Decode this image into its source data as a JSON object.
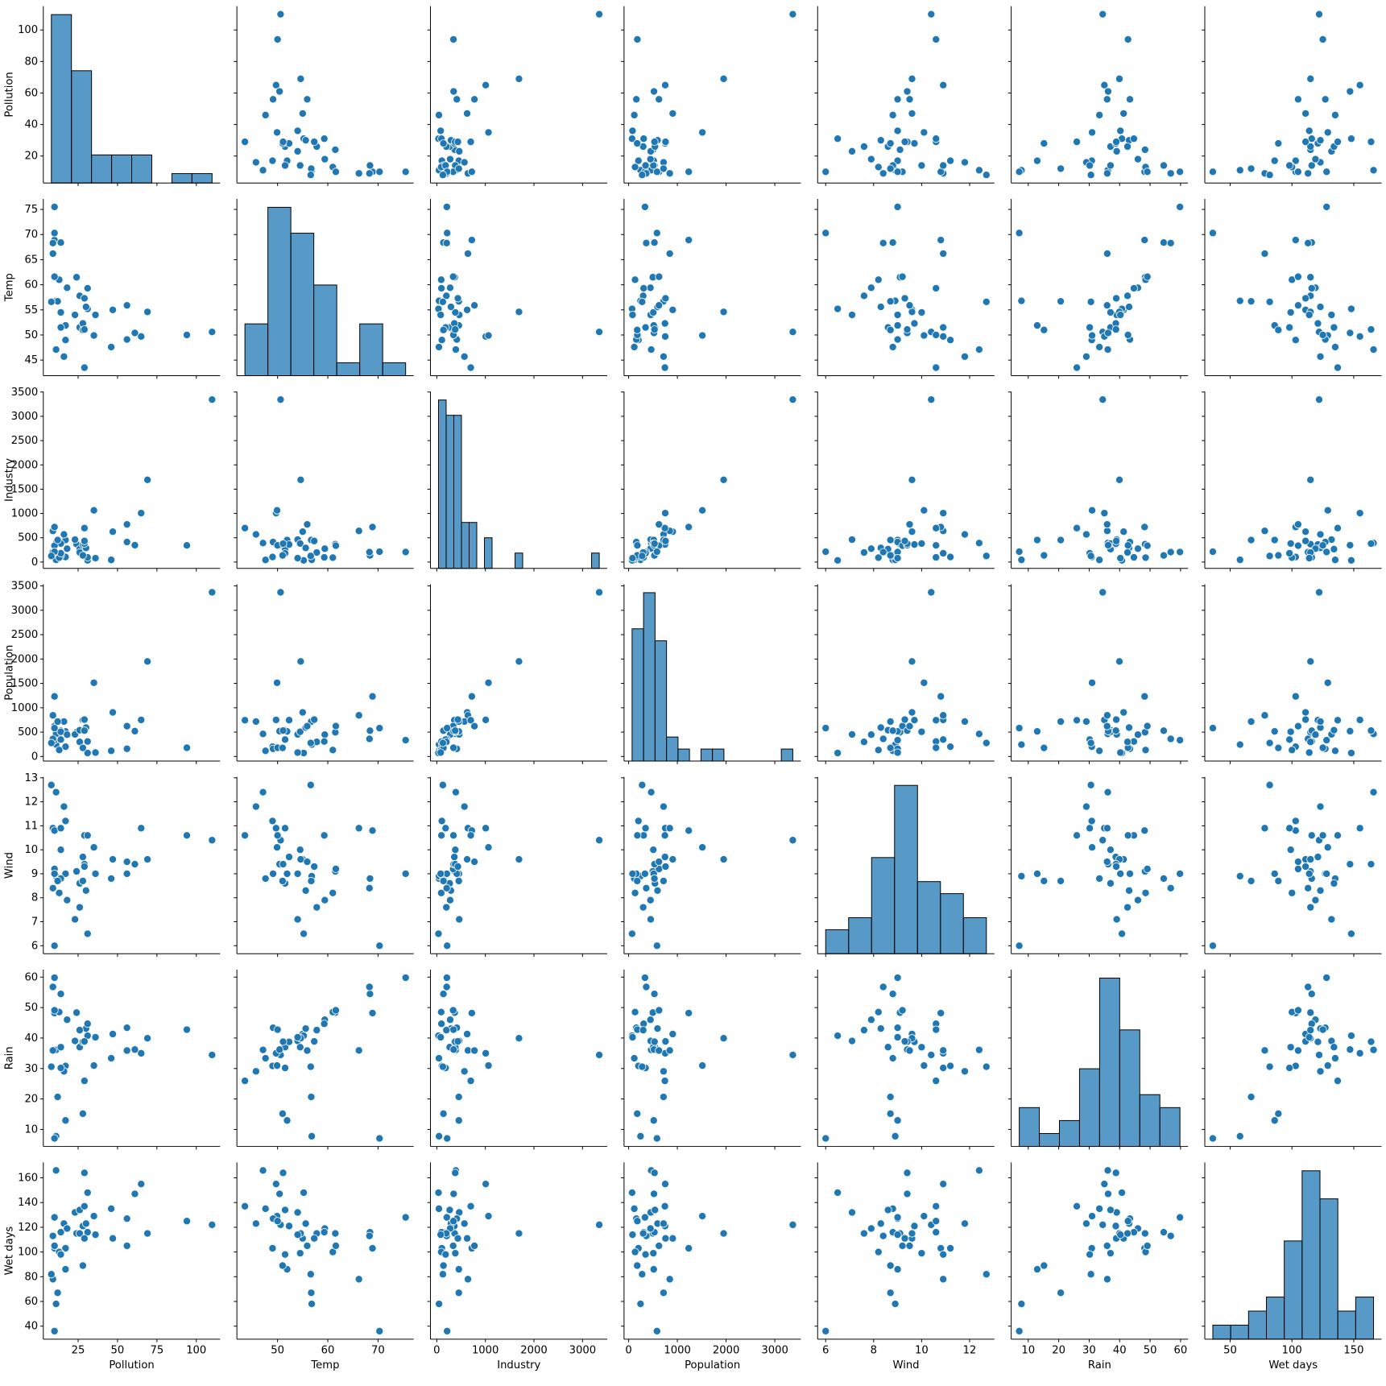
{
  "chart_data": {
    "type": "pairplot",
    "color": "#1f77b4",
    "variables": [
      {
        "name": "Pollution",
        "lim": [
          2.9,
          115.1
        ],
        "xticks": [
          25,
          50,
          75,
          100
        ],
        "yticks": [
          20,
          40,
          60,
          80,
          100
        ],
        "values": [
          46,
          11,
          24,
          47,
          11,
          31,
          110,
          23,
          65,
          26,
          9,
          17,
          17,
          35,
          56,
          10,
          28,
          14,
          14,
          13,
          30,
          10,
          10,
          16,
          29,
          18,
          9,
          31,
          14,
          69,
          10,
          61,
          94,
          26,
          28,
          12,
          29,
          56,
          29,
          8,
          36
        ],
        "hist": {
          "bins": [
            8,
            20.75,
            33.5,
            46.25,
            59,
            71.75,
            84.5,
            97.25,
            110
          ],
          "counts": [
            18,
            12,
            3,
            3,
            3,
            0,
            1,
            1
          ],
          "ylim": [
            0,
            18.9
          ]
        }
      },
      {
        "name": "Temp",
        "lim": [
          41.9,
          77.1
        ],
        "xticks": [
          50,
          60,
          70
        ],
        "yticks": [
          45,
          50,
          55,
          60,
          65,
          70,
          75
        ],
        "values": [
          47.6,
          56.8,
          61.5,
          55.0,
          47.1,
          55.2,
          50.6,
          54.0,
          49.7,
          51.5,
          66.2,
          51.9,
          49.0,
          49.9,
          49.1,
          68.9,
          52.3,
          68.4,
          54.5,
          61.0,
          55.6,
          61.6,
          75.5,
          45.7,
          43.5,
          59.4,
          68.3,
          59.3,
          51.5,
          54.6,
          70.3,
          50.4,
          50.0,
          57.8,
          51.0,
          56.7,
          51.1,
          55.9,
          57.3,
          56.6,
          54.0
        ],
        "hist": {
          "bins": [
            43.5,
            48.071,
            52.643,
            57.214,
            61.786,
            66.357,
            70.929,
            75.5
          ],
          "counts": [
            4,
            13,
            11,
            7,
            1,
            4,
            1
          ],
          "ylim": [
            0,
            13.65
          ]
        }
      },
      {
        "name": "Industry",
        "lim": [
          -130,
          3509
        ],
        "xticks": [
          0,
          1000,
          2000,
          3000
        ],
        "yticks": [
          0,
          500,
          1000,
          1500,
          2000,
          2500,
          3000,
          3500
        ],
        "values": [
          44,
          46,
          368,
          625,
          391,
          35,
          3344,
          462,
          1007,
          266,
          641,
          454,
          104,
          1064,
          412,
          721,
          361,
          136,
          381,
          91,
          291,
          337,
          207,
          569,
          699,
          275,
          204,
          96,
          181,
          1692,
          213,
          347,
          343,
          197,
          137,
          453,
          379,
          775,
          434,
          125,
          80
        ],
        "hist": {
          "bins": [
            35,
            192.571,
            350.143,
            507.714,
            665.286,
            822.857,
            980.429,
            1138,
            1295.571,
            1453.143,
            1610.714,
            1768.286,
            1925.857,
            2083.429,
            2241,
            2398.571,
            2556.143,
            2713.714,
            2871.286,
            3028.857,
            3186.429,
            3344
          ],
          "counts": [
            11,
            10,
            10,
            3,
            3,
            0,
            2,
            0,
            0,
            0,
            1,
            0,
            0,
            0,
            0,
            0,
            0,
            0,
            0,
            0,
            1
          ],
          "ylim": [
            0,
            11.55
          ]
        }
      },
      {
        "name": "Population",
        "lim": [
          -94,
          3534
        ],
        "xticks": [
          0,
          1000,
          2000,
          3000
        ],
        "yticks": [
          0,
          500,
          1000,
          1500,
          2000,
          2500,
          3000,
          3500
        ],
        "values": [
          116,
          244,
          497,
          905,
          463,
          71,
          3369,
          453,
          751,
          540,
          844,
          515,
          201,
          1513,
          158,
          1233,
          746,
          529,
          507,
          132,
          593,
          624,
          335,
          717,
          744,
          448,
          361,
          308,
          347,
          1950,
          582,
          520,
          179,
          299,
          176,
          716,
          531,
          622,
          757,
          277,
          80
        ],
        "hist": {
          "bins": [
            71,
            306.571,
            542.143,
            777.714,
            1013.286,
            1248.857,
            1484.429,
            1720,
            1955.571,
            2191.143,
            2426.714,
            2662.286,
            2897.857,
            3133.429,
            3369
          ],
          "counts": [
            11,
            14,
            10,
            2,
            1,
            0,
            1,
            1,
            0,
            0,
            0,
            0,
            0,
            1
          ],
          "ylim": [
            0,
            14.7
          ]
        }
      },
      {
        "name": "Wind",
        "lim": [
          5.665,
          13.035
        ],
        "xticks": [
          6,
          8,
          10,
          12
        ],
        "yticks": [
          6,
          7,
          8,
          9,
          10,
          11,
          12,
          13
        ],
        "values": [
          8.8,
          8.9,
          9.1,
          9.6,
          12.4,
          6.5,
          10.4,
          7.1,
          10.9,
          8.6,
          10.9,
          9.0,
          11.2,
          10.1,
          9.0,
          10.8,
          9.7,
          8.8,
          10.0,
          8.2,
          8.3,
          9.2,
          9.0,
          11.8,
          10.6,
          7.9,
          8.4,
          10.6,
          10.9,
          9.6,
          6.0,
          9.4,
          10.6,
          7.6,
          8.7,
          8.7,
          9.4,
          9.5,
          9.3,
          12.7,
          9.0
        ],
        "hist": {
          "bins": [
            6,
            6.957,
            7.914,
            8.871,
            9.829,
            10.786,
            11.743,
            12.7
          ],
          "counts": [
            2,
            3,
            8,
            14,
            6,
            5,
            3
          ],
          "ylim": [
            0,
            14.7
          ]
        }
      },
      {
        "name": "Rain",
        "lim": [
          4.41,
          62.44
        ],
        "xticks": [
          10,
          20,
          30,
          40,
          50,
          60
        ],
        "yticks": [
          10,
          20,
          30,
          40,
          50,
          60
        ],
        "values": [
          33.36,
          7.77,
          48.34,
          41.31,
          36.11,
          40.75,
          34.44,
          39.04,
          34.99,
          37.01,
          35.94,
          12.95,
          30.85,
          30.96,
          43.37,
          48.19,
          38.74,
          54.47,
          37.0,
          48.52,
          43.11,
          49.1,
          59.8,
          29.07,
          25.94,
          46.0,
          56.77,
          44.68,
          30.18,
          39.93,
          7.05,
          36.22,
          42.75,
          42.59,
          15.17,
          20.66,
          38.79,
          35.89,
          38.89,
          30.58,
          40.25
        ],
        "hist": {
          "bins": [
            7.05,
            13.644,
            20.238,
            26.831,
            33.425,
            40.019,
            46.613,
            53.206,
            59.8
          ],
          "counts": [
            3,
            1,
            2,
            6,
            13,
            9,
            4,
            3
          ],
          "ylim": [
            0,
            13.65
          ]
        }
      },
      {
        "name": "Wet days",
        "lim": [
          29.5,
          172.5
        ],
        "xticks": [
          50,
          100,
          150
        ],
        "yticks": [
          40,
          60,
          80,
          100,
          120,
          140,
          160
        ],
        "values": [
          135,
          58,
          115,
          111,
          166,
          148,
          122,
          132,
          155,
          134,
          78,
          86,
          103,
          129,
          127,
          103,
          121,
          116,
          99,
          100,
          123,
          105,
          128,
          123,
          137,
          119,
          113,
          116,
          98,
          115,
          36,
          147,
          125,
          115,
          89,
          67,
          164,
          105,
          111,
          82,
          114
        ],
        "hist": {
          "bins": [
            36,
            50.444,
            64.889,
            79.333,
            93.778,
            108.222,
            122.667,
            137.111,
            151.556,
            166
          ],
          "counts": [
            1,
            1,
            2,
            3,
            7,
            12,
            10,
            2,
            3
          ],
          "ylim": [
            0,
            12.6
          ]
        }
      }
    ]
  }
}
